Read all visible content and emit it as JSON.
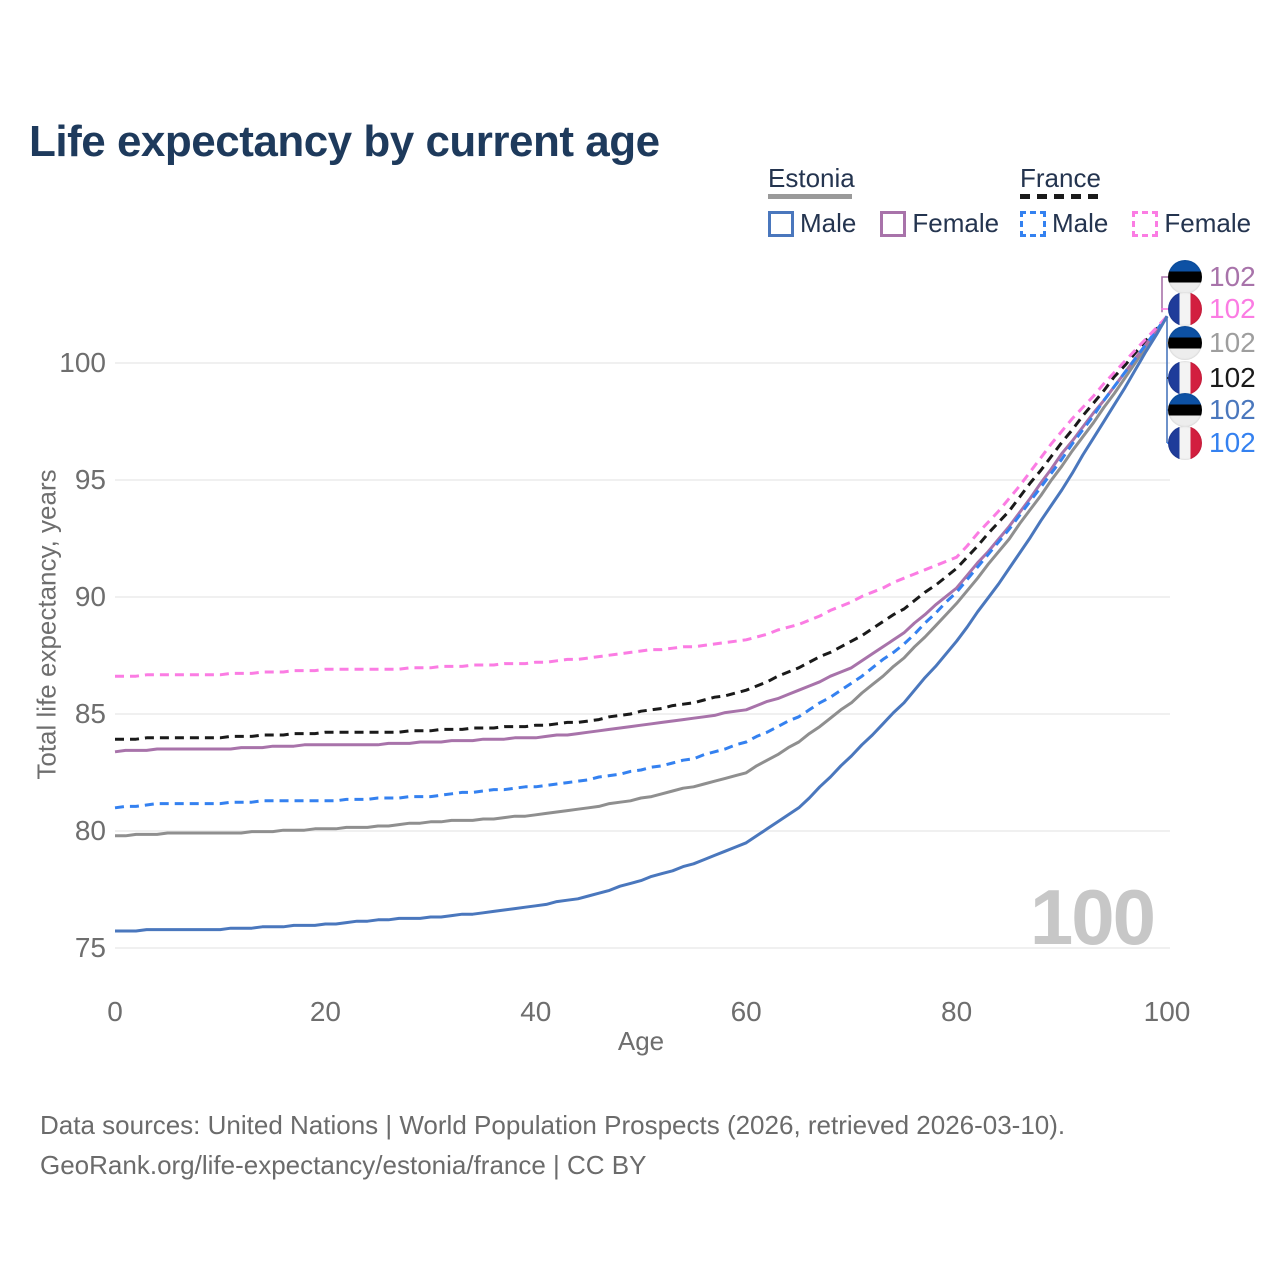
{
  "title": "Life expectancy by current age",
  "legend": {
    "groups": [
      {
        "label": "Estonia",
        "dashed": false,
        "swatch_color": "#9a9a9a",
        "items": [
          {
            "label": "Male",
            "color": "#4a77bd",
            "dashed": false
          },
          {
            "label": "Female",
            "color": "#a873aa",
            "dashed": false
          }
        ]
      },
      {
        "label": "France",
        "dashed": true,
        "swatch_color": "#1a1a1a",
        "items": [
          {
            "label": "Male",
            "color": "#3481f0",
            "dashed": true
          },
          {
            "label": "Female",
            "color": "#fb7ce3",
            "dashed": true
          }
        ]
      }
    ]
  },
  "chart_data": {
    "type": "line",
    "title": "Life expectancy by current age",
    "xlabel": "Age",
    "ylabel": "Total life expectancy, years",
    "xlim": [
      0,
      100
    ],
    "ylim": [
      75,
      102.5
    ],
    "xticks": [
      0,
      20,
      40,
      60,
      80,
      100
    ],
    "yticks": [
      75,
      80,
      85,
      90,
      95,
      100
    ],
    "grid": true,
    "legend_position": "top-right",
    "watermark": "100",
    "x": [
      0,
      5,
      10,
      15,
      20,
      25,
      30,
      35,
      40,
      45,
      50,
      55,
      60,
      65,
      70,
      75,
      80,
      85,
      90,
      95,
      100
    ],
    "series": [
      {
        "name": "Estonia Both sexes",
        "country": "Estonia",
        "sex": "Both",
        "color": "#8f8f8f",
        "dashed": false,
        "values": [
          79.8,
          79.9,
          79.9,
          80.0,
          80.1,
          80.2,
          80.4,
          80.5,
          80.7,
          81.0,
          81.4,
          81.9,
          82.5,
          83.8,
          85.5,
          87.4,
          89.7,
          92.5,
          95.6,
          98.7,
          102
        ]
      },
      {
        "name": "France Both sexes",
        "country": "France",
        "sex": "Both",
        "color": "#1a1a1a",
        "dashed": true,
        "values": [
          83.9,
          84.0,
          84.0,
          84.1,
          84.2,
          84.2,
          84.3,
          84.4,
          84.5,
          84.7,
          85.1,
          85.5,
          86.0,
          87.0,
          88.1,
          89.5,
          91.2,
          93.7,
          96.6,
          99.4,
          102
        ]
      },
      {
        "name": "Estonia Female",
        "country": "Estonia",
        "sex": "Female",
        "color": "#a873aa",
        "dashed": false,
        "values": [
          83.4,
          83.5,
          83.5,
          83.6,
          83.7,
          83.7,
          83.8,
          83.9,
          84.0,
          84.2,
          84.5,
          84.8,
          85.2,
          86.0,
          87.0,
          88.5,
          90.4,
          93.0,
          96.1,
          99.0,
          102
        ]
      },
      {
        "name": "France Male",
        "country": "France",
        "sex": "Male",
        "color": "#3481f0",
        "dashed": true,
        "values": [
          81.0,
          81.2,
          81.2,
          81.3,
          81.3,
          81.4,
          81.5,
          81.7,
          81.9,
          82.2,
          82.6,
          83.1,
          83.8,
          84.9,
          86.3,
          88.0,
          90.2,
          92.9,
          95.9,
          99.0,
          102
        ]
      },
      {
        "name": "France Female",
        "country": "France",
        "sex": "Female",
        "color": "#fb7ce3",
        "dashed": true,
        "values": [
          86.6,
          86.7,
          86.7,
          86.8,
          86.9,
          86.9,
          87.0,
          87.1,
          87.2,
          87.4,
          87.7,
          87.9,
          88.2,
          88.8,
          89.8,
          90.8,
          91.7,
          94.2,
          97.1,
          99.6,
          102
        ]
      },
      {
        "name": "Estonia Male",
        "country": "Estonia",
        "sex": "Male",
        "color": "#4a77bd",
        "dashed": false,
        "values": [
          75.7,
          75.8,
          75.8,
          75.9,
          76.0,
          76.2,
          76.3,
          76.5,
          76.8,
          77.2,
          77.9,
          78.6,
          79.5,
          81.0,
          83.2,
          85.5,
          88.1,
          91.2,
          94.6,
          98.2,
          102
        ]
      }
    ],
    "end_labels": [
      {
        "series": "Estonia Female",
        "flag": "estonia",
        "value": "102",
        "color": "#a873aa"
      },
      {
        "series": "France Female",
        "flag": "france",
        "value": "102",
        "color": "#fb7ce3"
      },
      {
        "series": "Estonia Both sexes",
        "flag": "estonia",
        "value": "102",
        "color": "#9e9e9e"
      },
      {
        "series": "France Both sexes",
        "flag": "france",
        "value": "102",
        "color": "#1a1a1a"
      },
      {
        "series": "Estonia Male",
        "flag": "estonia",
        "value": "102",
        "color": "#4a77bd"
      },
      {
        "series": "France Male",
        "flag": "france",
        "value": "102",
        "color": "#3481f0"
      }
    ]
  },
  "footer": {
    "line1": "Data sources: United Nations | World Population Prospects (2026, retrieved 2026-03-10).",
    "line2": "GeoRank.org/life-expectancy/estonia/france | CC BY"
  }
}
